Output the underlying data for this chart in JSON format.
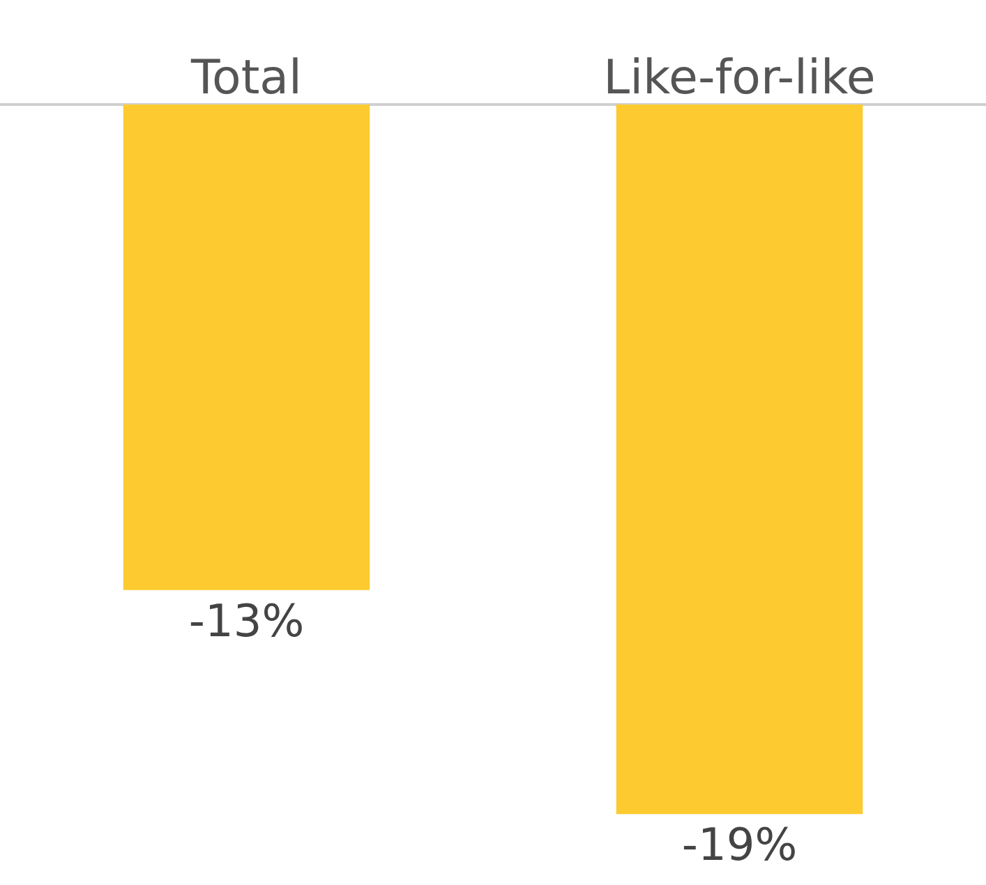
{
  "chart_data": {
    "type": "bar",
    "categories": [
      "Total",
      "Like-for-like"
    ],
    "values": [
      -13,
      -19
    ],
    "value_labels": [
      "-13%",
      "-19%"
    ],
    "color": "#fdcb30",
    "tick_labels": "x"
  }
}
